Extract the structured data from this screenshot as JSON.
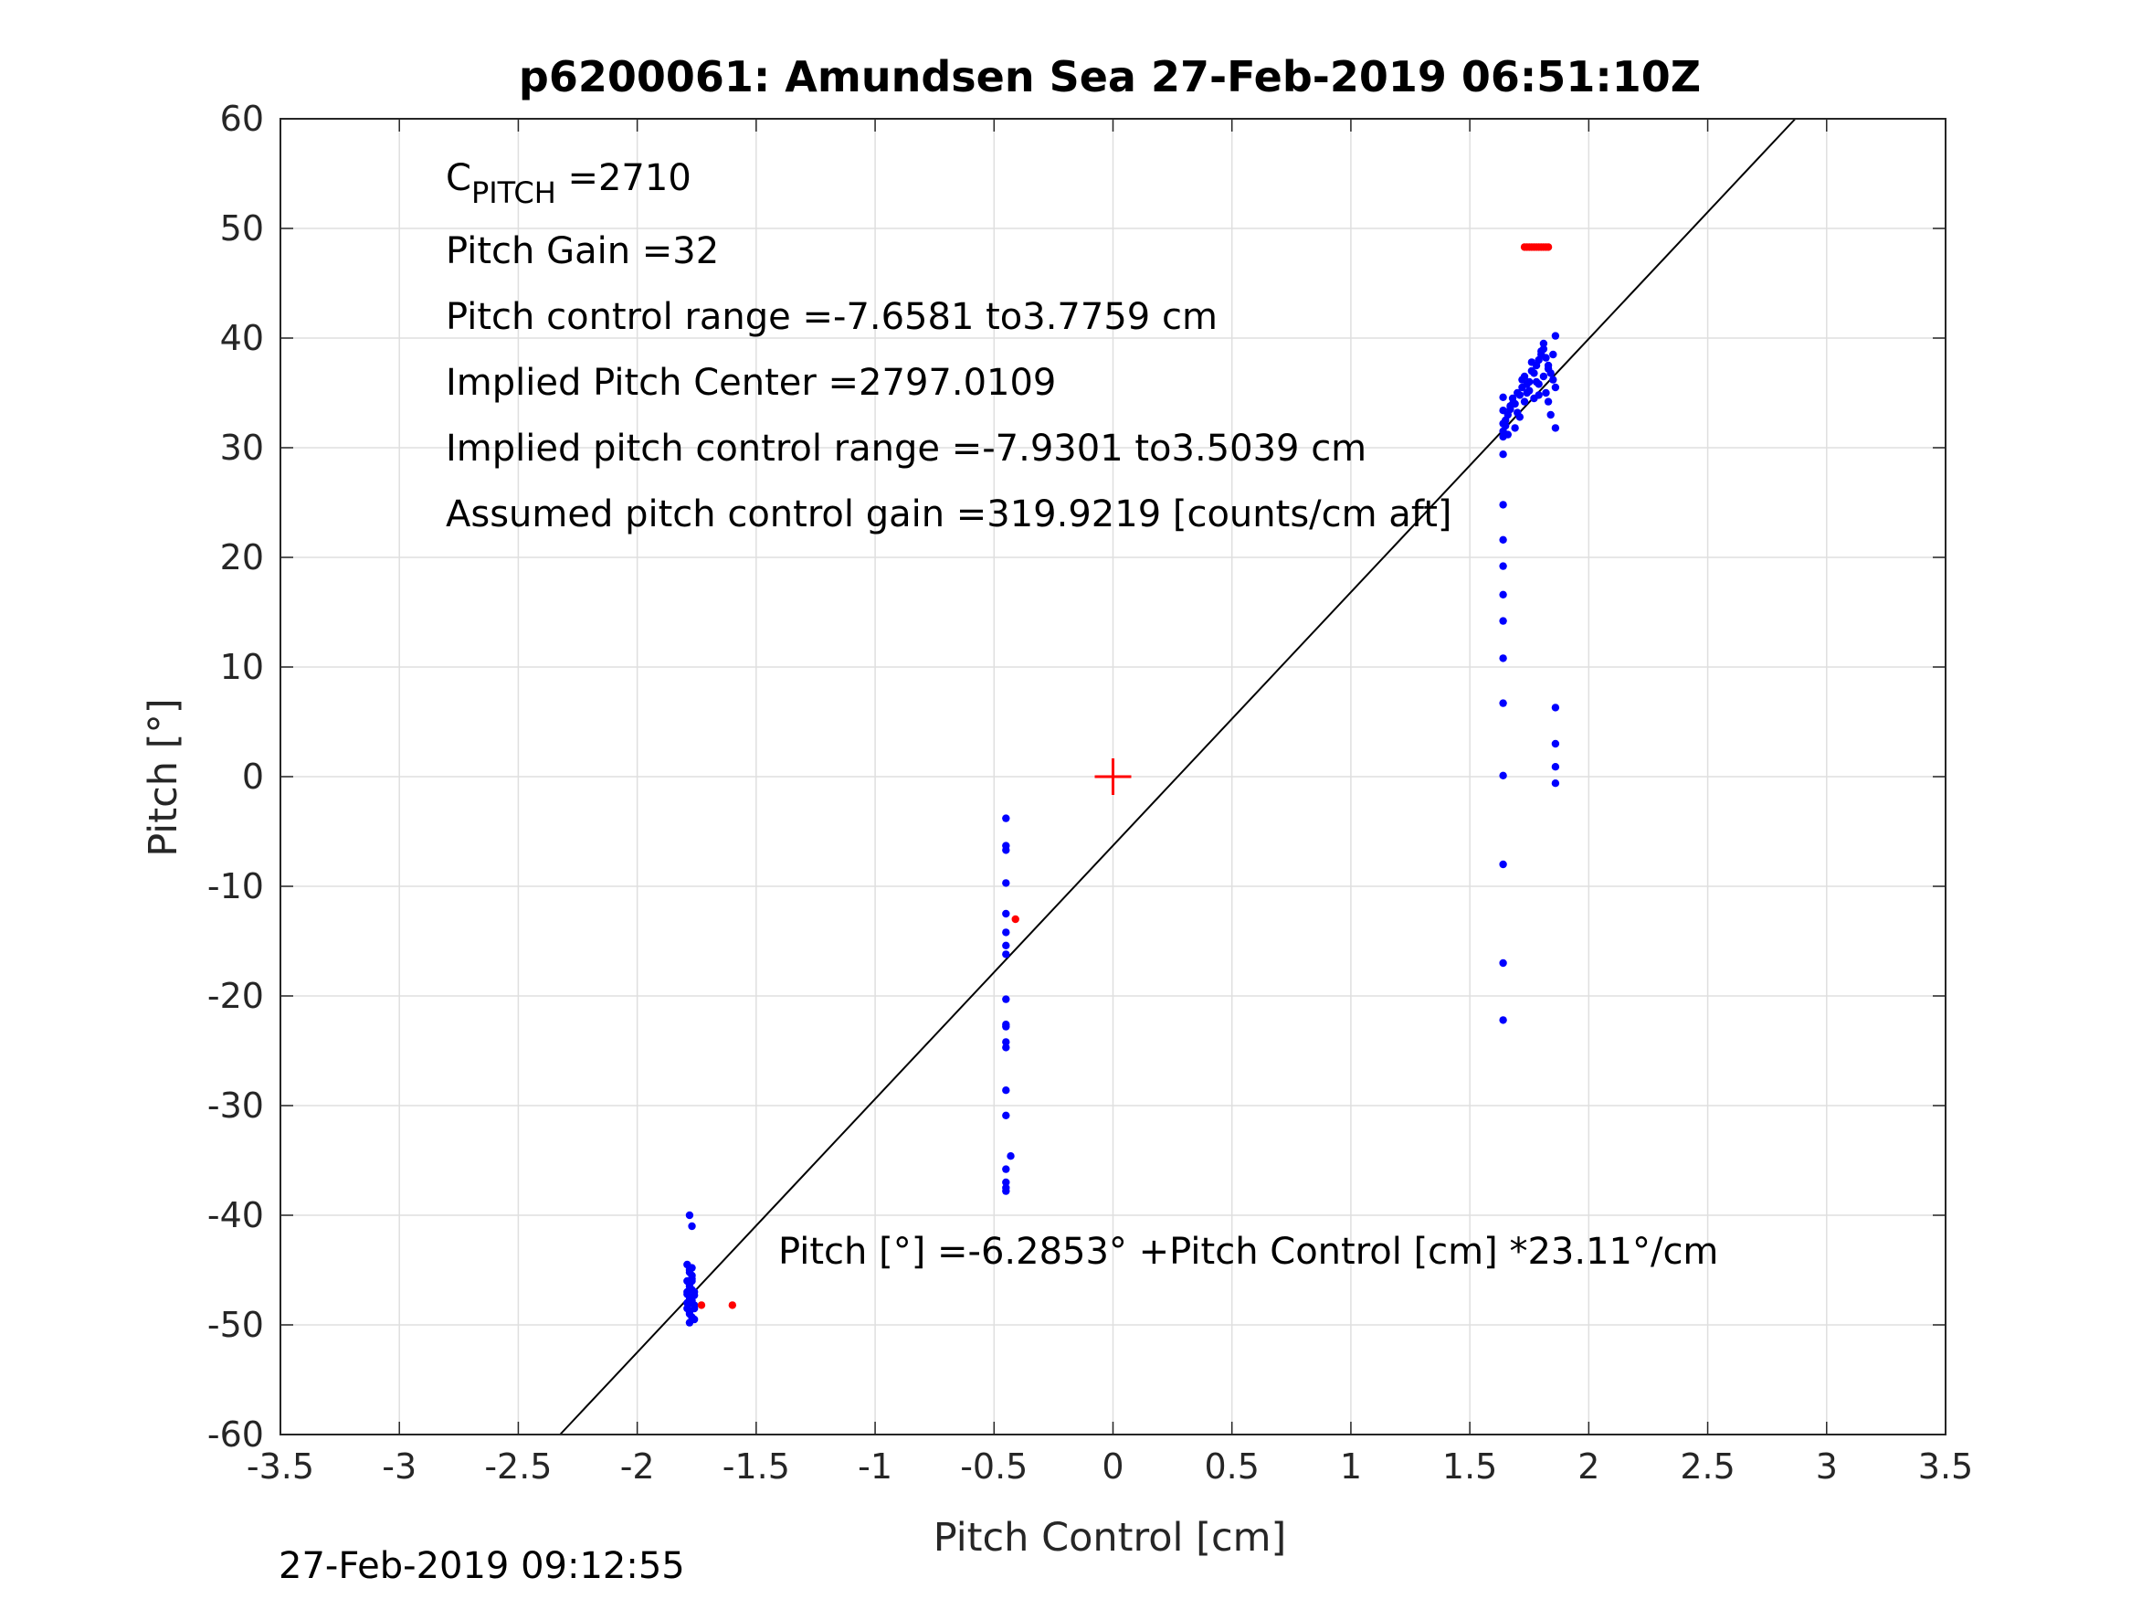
{
  "chart_data": {
    "type": "scatter",
    "title": "p6200061: Amundsen Sea 27-Feb-2019 06:51:10Z",
    "xlabel": "Pitch Control [cm]",
    "ylabel": "Pitch [°]",
    "xlim": [
      -3.5,
      3.5
    ],
    "ylim": [
      -60,
      60
    ],
    "xticks": [
      -3.5,
      -3,
      -2.5,
      -2,
      -1.5,
      -1,
      -0.5,
      0,
      0.5,
      1,
      1.5,
      2,
      2.5,
      3,
      3.5
    ],
    "xtick_labels": [
      "-3.5",
      "-3",
      "-2.5",
      "-2",
      "-1.5",
      "-1",
      "-0.5",
      "0",
      "0.5",
      "1",
      "1.5",
      "2",
      "2.5",
      "3",
      "3.5"
    ],
    "yticks": [
      -60,
      -50,
      -40,
      -30,
      -20,
      -10,
      0,
      10,
      20,
      30,
      40,
      50,
      60
    ],
    "ytick_labels": [
      "-60",
      "-50",
      "-40",
      "-30",
      "-20",
      "-10",
      "0",
      "10",
      "20",
      "30",
      "40",
      "50",
      "60"
    ],
    "grid": true,
    "footer": "27-Feb-2019 09:12:55",
    "annotations": {
      "c_pitch_main": "C",
      "c_pitch_sub": "PITCH",
      "c_pitch_value": " =2710",
      "pitch_gain": "Pitch Gain =32",
      "pitch_control_range": "Pitch control range =-7.6581 to3.7759 cm",
      "implied_center": "Implied Pitch Center =2797.0109",
      "implied_range": "Implied pitch control range =-7.9301 to3.5039 cm",
      "assumed_gain": "Assumed pitch control gain =319.9219 [counts/cm aft]",
      "fit_equation": "Pitch [°] =-6.2853° +Pitch Control [cm] *23.11°/cm"
    },
    "fit_line": {
      "intercept": -6.2853,
      "slope": 23.11,
      "color": "#000000"
    },
    "center_marker": {
      "x": 0,
      "y": 0,
      "color": "#ff0000"
    },
    "series": [
      {
        "color": "#0000ff",
        "x": [
          -1.78,
          -1.77,
          -1.79,
          -1.78,
          -1.77,
          -1.79,
          -1.78,
          -1.76,
          -1.77,
          -1.78,
          -1.79,
          -1.78,
          -1.76,
          -1.77,
          -1.78,
          -1.79,
          -1.77,
          -1.76,
          -1.78,
          -1.77,
          -1.79,
          -1.78,
          -1.77,
          -1.76,
          -1.78,
          -1.77,
          -1.78,
          -1.79,
          -1.77,
          -1.76,
          -0.45,
          -0.45,
          -0.45,
          -0.45,
          -0.45,
          -0.45,
          -0.45,
          -0.45,
          -0.45,
          -0.45,
          -0.45,
          -0.45,
          -0.45,
          -0.45,
          -0.45,
          -0.43,
          -0.45,
          -0.45,
          -0.45,
          -0.45,
          1.64,
          1.64,
          1.64,
          1.64,
          1.64,
          1.64,
          1.64,
          1.64,
          1.64,
          1.64,
          1.64,
          1.64,
          1.64,
          1.64,
          1.64,
          1.64,
          1.86,
          1.86,
          1.86,
          1.86,
          1.64,
          1.65,
          1.66,
          1.67,
          1.68,
          1.69,
          1.7,
          1.71,
          1.72,
          1.73,
          1.74,
          1.75,
          1.76,
          1.77,
          1.78,
          1.79,
          1.8,
          1.81,
          1.82,
          1.83,
          1.84,
          1.85,
          1.86,
          1.65,
          1.67,
          1.69,
          1.71,
          1.73,
          1.75,
          1.77,
          1.79,
          1.81,
          1.83,
          1.85,
          1.86,
          1.66,
          1.68,
          1.7,
          1.72,
          1.74,
          1.76,
          1.78,
          1.8,
          1.82,
          1.84,
          1.86,
          1.81,
          1.83,
          1.79
        ],
        "y": [
          -40,
          -41,
          -44.5,
          -45,
          -45.5,
          -46,
          -46.5,
          -47,
          -47.5,
          -48,
          -48.5,
          -49,
          -49.5,
          -45.8,
          -46.3,
          -47.2,
          -47.8,
          -48.2,
          -48.8,
          -49.3,
          -47,
          -45.2,
          -46.8,
          -48.5,
          -49.8,
          -44.8,
          -47.5,
          -48,
          -46,
          -47.3,
          -3.8,
          -6.3,
          -6.7,
          -9.7,
          -12.5,
          -14.2,
          -15.4,
          -16.2,
          -20.3,
          -22.6,
          -22.8,
          -24.2,
          -24.7,
          -28.6,
          -30.9,
          -34.6,
          -35.8,
          -37.0,
          -37.5,
          -37.8,
          24.8,
          21.6,
          19.2,
          16.6,
          14.2,
          10.8,
          6.7,
          0.1,
          -8.0,
          -17.0,
          -22.2,
          29.4,
          31.0,
          32.2,
          33.4,
          34.6,
          6.3,
          3.0,
          0.9,
          -0.6,
          31.5,
          32.0,
          33.0,
          33.5,
          34.5,
          34.0,
          35.0,
          34.8,
          35.5,
          36.5,
          35.8,
          36.0,
          37.0,
          36.8,
          37.5,
          38.0,
          38.5,
          39.0,
          38.2,
          37.5,
          36.8,
          36.2,
          35.5,
          32.5,
          33.8,
          31.8,
          32.8,
          34.2,
          35.2,
          34.5,
          35.8,
          36.5,
          37.2,
          38.5,
          40.2,
          31.2,
          34.0,
          33.2,
          36.2,
          35.0,
          37.8,
          36.0,
          38.8,
          35.0,
          33.0,
          31.8,
          39.5,
          34.2,
          34.8
        ]
      },
      {
        "color": "#ff0000",
        "x": [
          -1.73,
          -1.6,
          -0.41,
          1.73,
          1.74,
          1.75,
          1.76,
          1.77,
          1.78,
          1.79,
          1.8,
          1.81,
          1.82,
          1.83
        ],
        "y": [
          -48.2,
          -48.2,
          -13.0,
          48.3,
          48.3,
          48.3,
          48.3,
          48.3,
          48.3,
          48.3,
          48.3,
          48.3,
          48.3,
          48.3
        ]
      }
    ]
  }
}
